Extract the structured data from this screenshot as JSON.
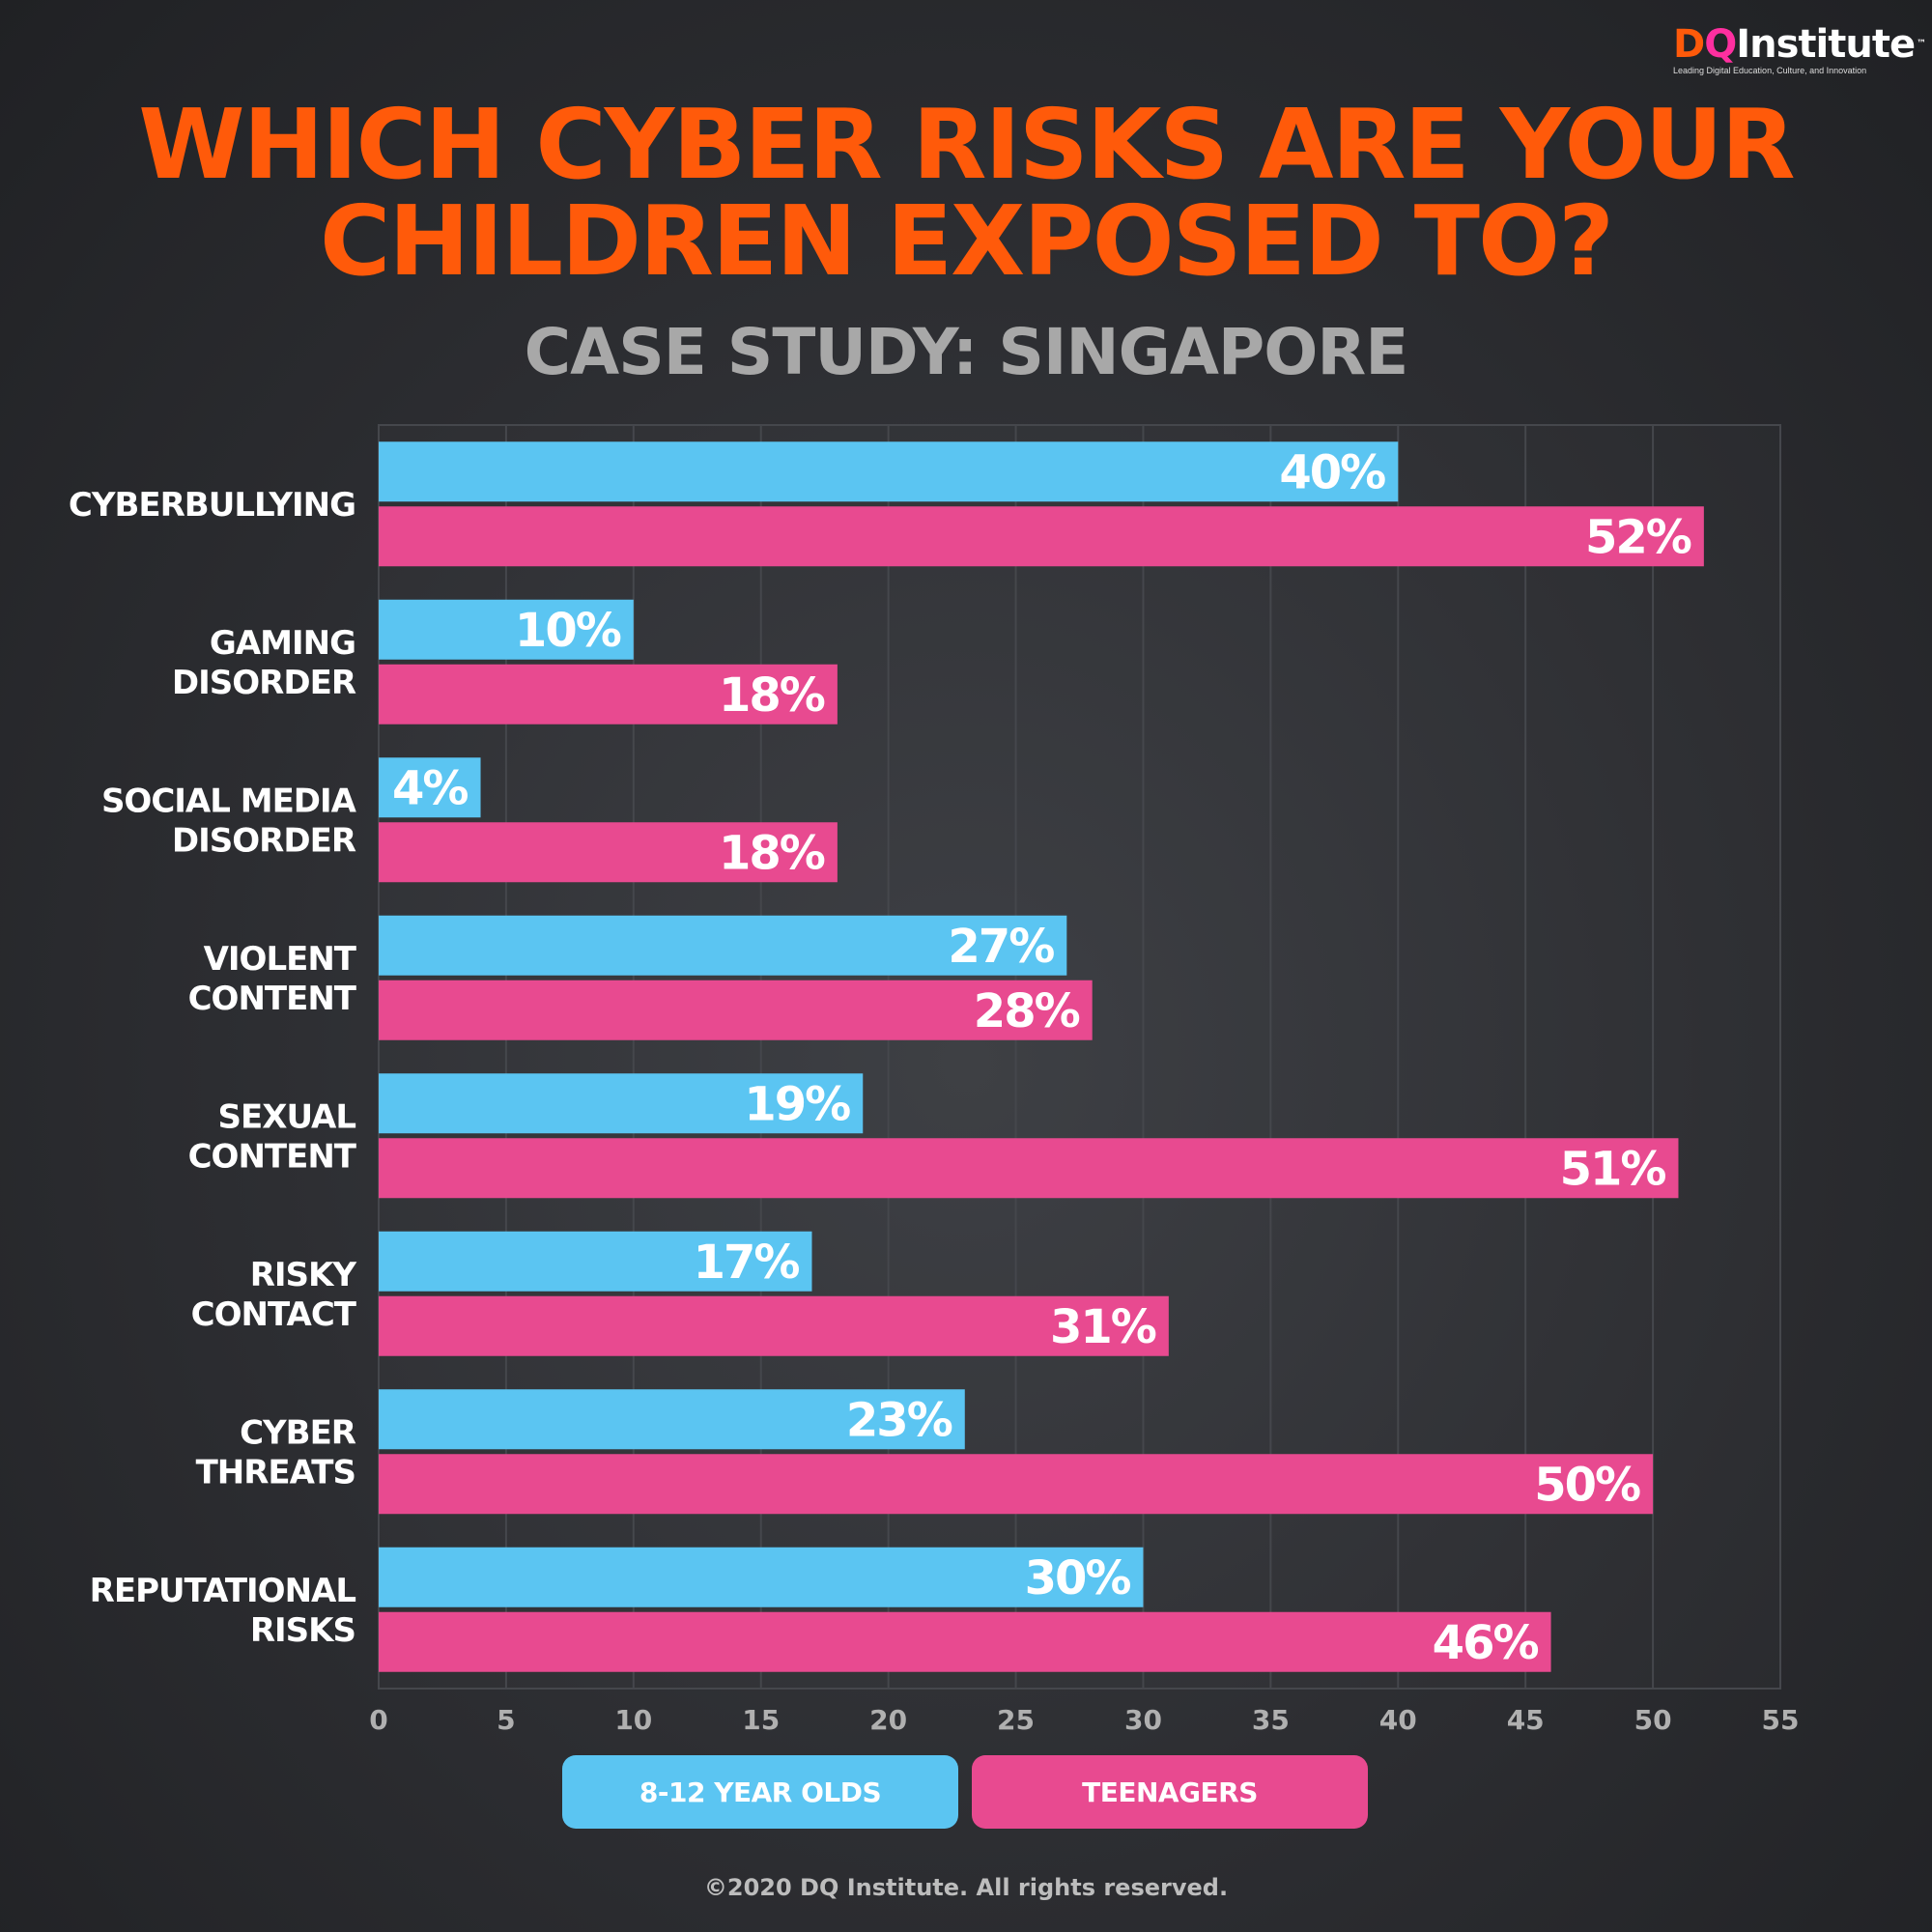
{
  "brand": {
    "logo_d": "D",
    "logo_q": "Q",
    "logo_word": "Institute",
    "logo_tm": "™",
    "tagline": "Leading Digital Education, Culture, and Innovation"
  },
  "header": {
    "title_line1": "WHICH CYBER RISKS ARE YOUR",
    "title_line2": "CHILDREN EXPOSED TO?",
    "subtitle": "CASE STUDY: SINGAPORE"
  },
  "colors": {
    "title": "#ff5a0a",
    "series_kids": "#5bc5f2",
    "series_teens": "#e84a90"
  },
  "chart_data": {
    "type": "bar",
    "orientation": "horizontal",
    "title": "WHICH CYBER RISKS ARE YOUR CHILDREN EXPOSED TO?",
    "subtitle": "CASE STUDY: SINGAPORE",
    "categories": [
      [
        "CYBERBULLYING"
      ],
      [
        "GAMING",
        "DISORDER"
      ],
      [
        "SOCIAL MEDIA",
        "DISORDER"
      ],
      [
        "VIOLENT",
        "CONTENT"
      ],
      [
        "SEXUAL",
        "CONTENT"
      ],
      [
        "RISKY",
        "CONTACT"
      ],
      [
        "CYBER",
        "THREATS"
      ],
      [
        "REPUTATIONAL",
        "RISKS"
      ]
    ],
    "series": [
      {
        "name": "8-12 YEAR OLDS",
        "color": "#5bc5f2",
        "values": [
          40,
          10,
          4,
          27,
          19,
          17,
          23,
          30
        ]
      },
      {
        "name": "TEENAGERS",
        "color": "#e84a90",
        "values": [
          52,
          18,
          18,
          28,
          51,
          31,
          50,
          46
        ]
      }
    ],
    "value_suffix": "%",
    "xlim": [
      0,
      55
    ],
    "xticks": [
      "0",
      "5",
      "10",
      "15",
      "20",
      "25",
      "30",
      "35",
      "40",
      "45",
      "50",
      "55"
    ],
    "grid": true,
    "legend_position": "bottom"
  },
  "legend": {
    "kids_label": "8-12 YEAR OLDS",
    "teens_label": "TEENAGERS"
  },
  "footer": {
    "copyright": "©2020 DQ Institute. All rights reserved."
  }
}
